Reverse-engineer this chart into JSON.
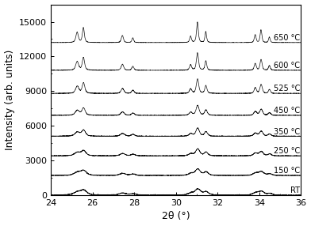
{
  "xmin": 24,
  "xmax": 36,
  "ymin": 0,
  "ymax": 16500,
  "xlabel": "2θ (°)",
  "ylabel": "Intensity (arb. units)",
  "xticks": [
    24,
    26,
    28,
    30,
    32,
    34,
    36
  ],
  "yticks": [
    0,
    3000,
    6000,
    9000,
    12000,
    15000
  ],
  "temp_labels": [
    "RT",
    "150 °C",
    "250 °C",
    "350 °C",
    "450 °C",
    "525 °C",
    "600 °C",
    "650 °C"
  ],
  "offsets": [
    0,
    1700,
    3400,
    5100,
    6900,
    8800,
    10800,
    13200
  ],
  "line_color": "#111111",
  "background_color": "#ffffff",
  "label_fontsize": 7,
  "axis_fontsize": 9,
  "tick_fontsize": 8
}
